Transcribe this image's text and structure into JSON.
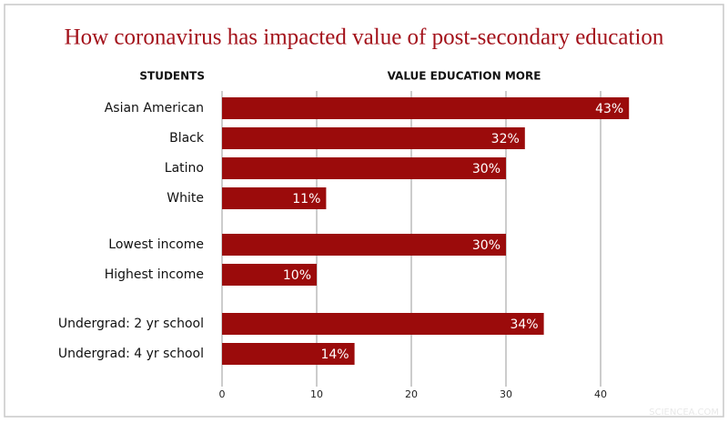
{
  "chart_data": {
    "type": "bar",
    "orientation": "horizontal",
    "title": "How coronavirus has impacted value of post-secondary education",
    "category_header": "STUDENTS",
    "value_header": "VALUE EDUCATION MORE",
    "categories": [
      "Asian American",
      "Black",
      "Latino",
      "White",
      "Lowest income",
      "Highest income",
      "Undergrad: 2 yr school",
      "Undergrad: 4 yr school"
    ],
    "values": [
      43,
      32,
      30,
      11,
      30,
      10,
      34,
      14
    ],
    "value_labels": [
      "43%",
      "32%",
      "30%",
      "11%",
      "30%",
      "10%",
      "34%",
      "14%"
    ],
    "color": "#9b0b0b",
    "xlim": [
      0,
      44
    ],
    "xticks": [
      0,
      10,
      20,
      30,
      40
    ],
    "grid": true,
    "watermark": "SCIENCEA.COM"
  }
}
